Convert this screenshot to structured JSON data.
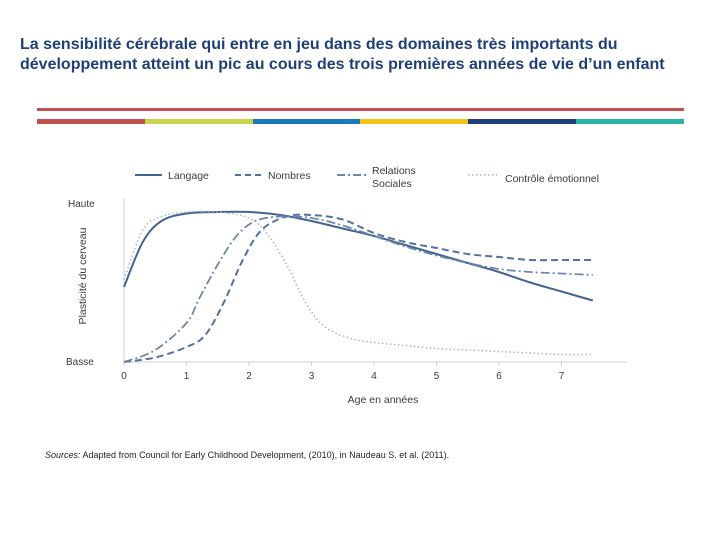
{
  "slide": {
    "title": "La sensibilité cérébrale qui entre en jeu dans des domaines très importants du développement atteint un pic au cours des trois premières années de vie d’un enfant"
  },
  "divider": {
    "top_color": "#c0504d",
    "segments": [
      "#c0504d",
      "#c8d44a",
      "#1d7ab8",
      "#f0c419",
      "#1f3f77",
      "#2ab3a6"
    ]
  },
  "source": {
    "prefix": "Sources:",
    "text": " Adapted from Council for Early Childhood Development, (2010), in Naudeau S. et al. (2011)."
  },
  "chart_data": {
    "type": "line",
    "title": "",
    "xlabel": "Age en années",
    "ylabel": "Plasticité du cerveau",
    "xlim": [
      0,
      7.7
    ],
    "ylim": [
      0,
      100
    ],
    "x_ticks": [
      "0",
      "1",
      "2",
      "3",
      "4",
      "5",
      "6",
      "7"
    ],
    "y_tick_labels": {
      "high": "Haute",
      "low": "Basse"
    },
    "legend_position": "top",
    "series": [
      {
        "name": "Langage",
        "legend": "Langage",
        "style": "solid",
        "color": "#44638f",
        "points": [
          [
            0,
            50
          ],
          [
            0.3,
            80
          ],
          [
            0.6,
            94
          ],
          [
            1,
            99
          ],
          [
            1.5,
            100
          ],
          [
            2,
            100
          ],
          [
            2.5,
            98
          ],
          [
            3,
            94
          ],
          [
            3.5,
            89
          ],
          [
            4,
            84
          ],
          [
            4.5,
            78
          ],
          [
            5,
            72
          ],
          [
            5.5,
            66
          ],
          [
            6,
            60
          ],
          [
            6.5,
            53
          ],
          [
            7,
            47
          ],
          [
            7.5,
            41
          ]
        ]
      },
      {
        "name": "Nombres",
        "legend": "Nombres",
        "style": "dashed",
        "color": "#52729f",
        "points": [
          [
            0,
            0
          ],
          [
            0.5,
            3
          ],
          [
            1,
            10
          ],
          [
            1.3,
            18
          ],
          [
            1.6,
            40
          ],
          [
            1.9,
            68
          ],
          [
            2.2,
            88
          ],
          [
            2.6,
            97
          ],
          [
            3,
            98
          ],
          [
            3.5,
            95
          ],
          [
            4,
            86
          ],
          [
            4.5,
            80
          ],
          [
            5,
            76
          ],
          [
            5.5,
            72
          ],
          [
            6,
            70
          ],
          [
            6.5,
            68
          ],
          [
            7,
            68
          ],
          [
            7.5,
            68
          ]
        ]
      },
      {
        "name": "Relations Sociales",
        "legend": [
          "Relations",
          "Sociales"
        ],
        "style": "dashdot",
        "color": "#6f87ad",
        "points": [
          [
            0,
            0
          ],
          [
            0.5,
            8
          ],
          [
            1,
            26
          ],
          [
            1.2,
            42
          ],
          [
            1.5,
            65
          ],
          [
            1.8,
            84
          ],
          [
            2.1,
            94
          ],
          [
            2.5,
            97
          ],
          [
            3,
            96
          ],
          [
            3.5,
            91
          ],
          [
            4,
            84
          ],
          [
            4.5,
            77
          ],
          [
            5,
            71
          ],
          [
            5.5,
            66
          ],
          [
            6,
            62
          ],
          [
            6.5,
            60
          ],
          [
            7,
            59
          ],
          [
            7.5,
            58
          ]
        ]
      },
      {
        "name": "Contrôle émotionnel",
        "legend": "Contrôle émotionnel",
        "style": "dotted",
        "color": "#a9b4c3",
        "points": [
          [
            0,
            55
          ],
          [
            0.3,
            88
          ],
          [
            0.6,
            97
          ],
          [
            1,
            100
          ],
          [
            1.5,
            100
          ],
          [
            2,
            96
          ],
          [
            2.3,
            85
          ],
          [
            2.6,
            65
          ],
          [
            2.9,
            40
          ],
          [
            3.2,
            24
          ],
          [
            3.6,
            16
          ],
          [
            4,
            13
          ],
          [
            4.5,
            11
          ],
          [
            5,
            9
          ],
          [
            5.5,
            8
          ],
          [
            6,
            7
          ],
          [
            6.5,
            6
          ],
          [
            7,
            5
          ],
          [
            7.5,
            5
          ]
        ]
      }
    ]
  }
}
